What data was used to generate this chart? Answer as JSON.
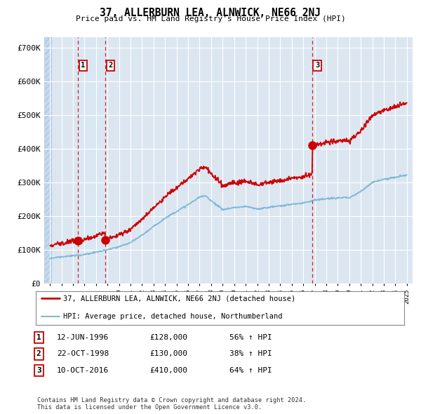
{
  "title": "37, ALLERBURN LEA, ALNWICK, NE66 2NJ",
  "subtitle": "Price paid vs. HM Land Registry's House Price Index (HPI)",
  "ylim": [
    0,
    730000
  ],
  "yticks": [
    0,
    100000,
    200000,
    300000,
    400000,
    500000,
    600000,
    700000
  ],
  "ytick_labels": [
    "£0",
    "£100K",
    "£200K",
    "£300K",
    "£400K",
    "£500K",
    "£600K",
    "£700K"
  ],
  "background_color": "#ffffff",
  "plot_bg_color": "#dce6f1",
  "hatch_bg_color": "#c5d9ed",
  "grid_color": "#ffffff",
  "purchases": [
    {
      "date_num": 1996.45,
      "price": 128000,
      "label": "1"
    },
    {
      "date_num": 1998.81,
      "price": 130000,
      "label": "2"
    },
    {
      "date_num": 2016.78,
      "price": 410000,
      "label": "3"
    }
  ],
  "transaction_table": [
    {
      "num": "1",
      "date": "12-JUN-1996",
      "price": "£128,000",
      "change": "56% ↑ HPI"
    },
    {
      "num": "2",
      "date": "22-OCT-1998",
      "price": "£130,000",
      "change": "38% ↑ HPI"
    },
    {
      "num": "3",
      "date": "10-OCT-2016",
      "price": "£410,000",
      "change": "64% ↑ HPI"
    }
  ],
  "legend_entries": [
    {
      "label": "37, ALLERBURN LEA, ALNWICK, NE66 2NJ (detached house)",
      "color": "#cc0000",
      "lw": 2
    },
    {
      "label": "HPI: Average price, detached house, Northumberland",
      "color": "#7fb8d8",
      "lw": 1.5
    }
  ],
  "footer": "Contains HM Land Registry data © Crown copyright and database right 2024.\nThis data is licensed under the Open Government Licence v3.0.",
  "hatch_end_year": 1994.08,
  "xmin": 1993.5,
  "xmax": 2025.5
}
